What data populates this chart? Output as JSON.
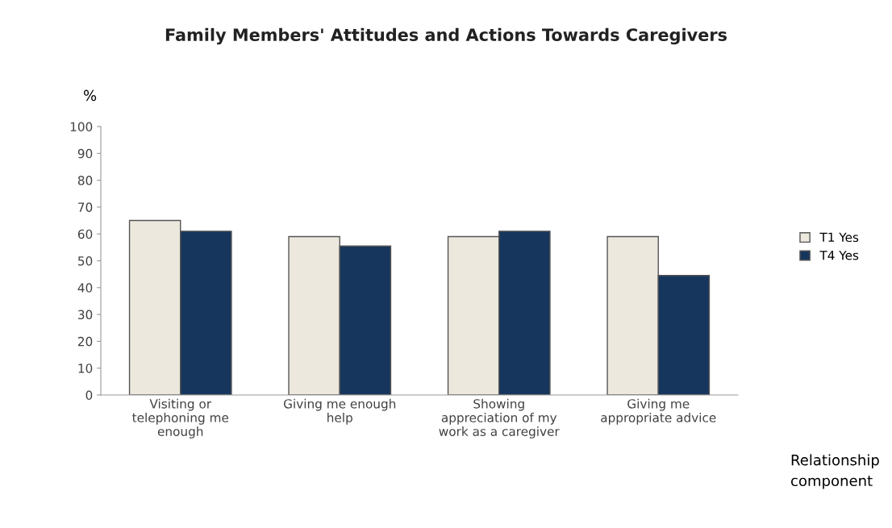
{
  "chart_data": {
    "type": "bar",
    "title": "Family Members' Attitudes and Actions Towards Caregivers",
    "ylabel": "%",
    "xlabel": "Relationship\ncomponent",
    "categories": [
      "Visiting or\ntelephoning me\nenough",
      "Giving me enough\nhelp",
      "Showing\nappreciation of my\nwork as a caregiver",
      "Giving me\nappropriate advice"
    ],
    "series": [
      {
        "name": "T1 Yes",
        "color": "#ece8de",
        "values": [
          65,
          59,
          59,
          59
        ]
      },
      {
        "name": "T4 Yes",
        "color": "#17365d",
        "values": [
          61,
          55.5,
          61,
          44.5
        ]
      }
    ],
    "ylim": [
      0,
      100
    ],
    "yticks": [
      0,
      10,
      20,
      30,
      40,
      50,
      60,
      70,
      80,
      90,
      100
    ],
    "grid": false,
    "legend": "right"
  }
}
